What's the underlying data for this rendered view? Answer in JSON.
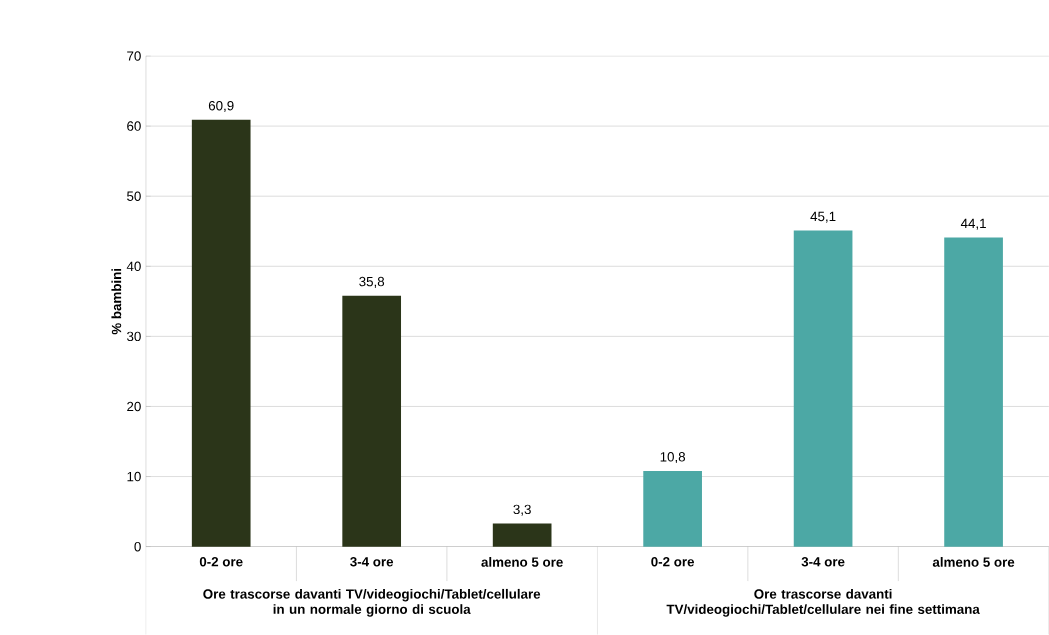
{
  "chart_data": {
    "type": "bar",
    "ylabel": "% bambini",
    "categories": [
      "0-2 ore",
      "3-4 ore",
      "almeno 5 ore",
      "0-2 ore",
      "3-4 ore",
      "almeno 5 ore"
    ],
    "values": [
      60.9,
      35.8,
      3.3,
      10.8,
      45.1,
      44.1
    ],
    "value_labels": [
      "60,9",
      "35,8",
      "3,3",
      "10,8",
      "45,1",
      "44,1"
    ],
    "colors": [
      "#2b3519",
      "#2b3519",
      "#2b3519",
      "#4ca8a5",
      "#4ca8a5",
      "#4ca8a5"
    ],
    "ylim": [
      0,
      70
    ],
    "yticks": [
      0,
      10,
      20,
      30,
      40,
      50,
      60,
      70
    ],
    "grid": "y",
    "annotations": [
      "Ore trascorse davanti TV/videogiochi/Tablet/cellulare in un normale giorno di scuola",
      "Ore trascorse davanti TV/videogiochi/Tablet/cellulare nei fine settimana"
    ]
  }
}
